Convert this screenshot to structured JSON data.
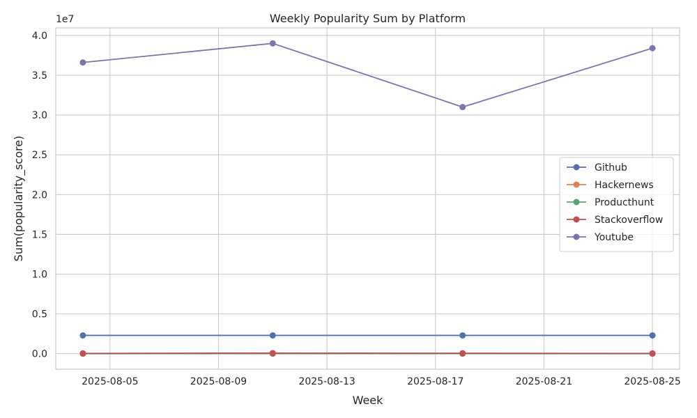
{
  "chart_data": {
    "type": "line",
    "title": "Weekly Popularity Sum by Platform",
    "xlabel": "Week",
    "ylabel": "Sum(popularity_score)",
    "y_offset_text": "1e7",
    "y_scale_factor": 10000000,
    "x": [
      "2025-08-04",
      "2025-08-11",
      "2025-08-18",
      "2025-08-25"
    ],
    "xlim": [
      "2025-08-03",
      "2025-08-26"
    ],
    "ylim": [
      -1950000,
      40950000
    ],
    "x_ticks": [
      "2025-08-05",
      "2025-08-09",
      "2025-08-13",
      "2025-08-17",
      "2025-08-21",
      "2025-08-25"
    ],
    "y_ticks": [
      0,
      5000000,
      10000000,
      15000000,
      20000000,
      25000000,
      30000000,
      35000000,
      40000000
    ],
    "y_tick_labels": [
      "0.0",
      "0.5",
      "1.0",
      "1.5",
      "2.0",
      "2.5",
      "3.0",
      "3.5",
      "4.0"
    ],
    "grid": true,
    "legend_position": "center-right",
    "series": [
      {
        "name": "Github",
        "color": "#4c72b0",
        "values": [
          2300000,
          2300000,
          2300000,
          2300000
        ]
      },
      {
        "name": "Hackernews",
        "color": "#dd8452",
        "values": [
          20000,
          30000,
          25000,
          20000
        ]
      },
      {
        "name": "Producthunt",
        "color": "#55a868",
        "values": [
          5000,
          8000,
          6000,
          5000
        ]
      },
      {
        "name": "Stackoverflow",
        "color": "#c44e52",
        "values": [
          40000,
          80000,
          60000,
          40000
        ]
      },
      {
        "name": "Youtube",
        "color": "#8172b3",
        "values": [
          36600000,
          39000000,
          31000000,
          38400000
        ]
      }
    ]
  }
}
